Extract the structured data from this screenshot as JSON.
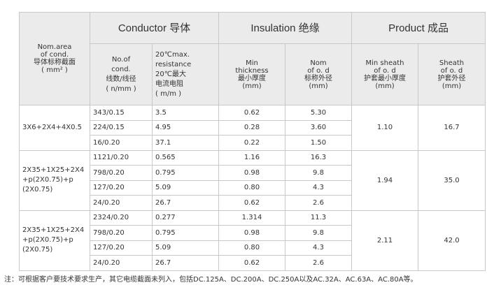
{
  "header": {
    "nom_area": "Nom.area\nof cond.\n导体标称截面\n( mm² )",
    "conductor": "Conductor 导体",
    "insulation": "Insulation 绝缘",
    "product": "Product 成品",
    "no_of_cond": "No.of\ncond.\n线数/线径\n( n/mm )",
    "resistance": "20℃max.\nresistance\n20℃最大\n电流电阻\n( m/m )",
    "min_thickness": "Min\nthickness\n最小厚度\n(mm)",
    "nom_od": "Nom\nof o. d\n标称外径\n(mm)",
    "min_sheath": "Min sheath\nof o. d\n护套最小厚度\n(mm)",
    "sheath_od": "Sheath\nof o. d\n护套外径\n(mm)"
  },
  "groups": [
    {
      "area": "3X6+2X4+4X0.5",
      "min_sheath": "1.10",
      "sheath_od": "16.7",
      "rows": [
        [
          "343/0.15",
          "3.5",
          "0.62",
          "5.30"
        ],
        [
          "224/0.15",
          "4.95",
          "0.28",
          "3.60"
        ],
        [
          "16/0.20",
          "37.1",
          "0.22",
          "1.50"
        ]
      ]
    },
    {
      "area": "2X35+1X25+2X4\n+p(2X0.75)+p\n(2X0.75)",
      "min_sheath": "1.94",
      "sheath_od": "35.0",
      "rows": [
        [
          "1121/0.20",
          "0.565",
          "1.16",
          "16.3"
        ],
        [
          "798/0.20",
          "0.795",
          "0.98",
          "9.8"
        ],
        [
          "127/0.20",
          "5.09",
          "0.80",
          "4.3"
        ],
        [
          "24/0.20",
          "26.7",
          "0.62",
          "2.6"
        ]
      ]
    },
    {
      "area": "2X35+1X25+2X4\n+p(2X0.75)+p\n(2X0.75)",
      "min_sheath": "2.11",
      "sheath_od": "42.0",
      "rows": [
        [
          "2324/0.20",
          "0.277",
          "1.314",
          "11.3"
        ],
        [
          "798/0.20",
          "0.795",
          "0.98",
          "9.8"
        ],
        [
          "127/0.20",
          "5.09",
          "0.80",
          "4.3"
        ],
        [
          "24/0.20",
          "26.7",
          "0.62",
          "2.6"
        ]
      ]
    }
  ],
  "note": "注：可根据客户要技术要求生产，其它电缆截面未列入，包括DC.125A、DC.200A、DC.250A以及AC.32A、AC.63A、AC.80A等。"
}
